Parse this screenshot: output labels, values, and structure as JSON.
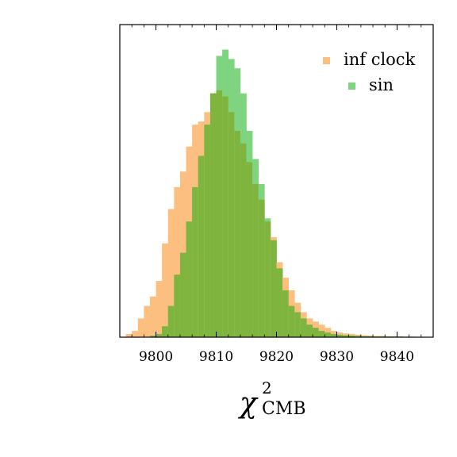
{
  "chart_data": {
    "type": "histogram",
    "title": "",
    "xlabel": {
      "symbol": "χ",
      "superscript": "2",
      "subscript": "CMB"
    },
    "ylabel": "",
    "xlim": [
      9794,
      9846
    ],
    "ylim": [
      0,
      1.0
    ],
    "xticks": [
      9800,
      9810,
      9820,
      9830,
      9840
    ],
    "xtick_labels": [
      "9800",
      "9810",
      "9820",
      "9830",
      "9840"
    ],
    "bin_width": 1,
    "legend_position": "top-right",
    "overlap_color": "#7fb53f",
    "series": [
      {
        "name": "inf clock",
        "color": "#fdbf80",
        "bin_starts": [
          9795,
          9796,
          9797,
          9798,
          9799,
          9800,
          9801,
          9802,
          9803,
          9804,
          9805,
          9806,
          9807,
          9808,
          9809,
          9810,
          9811,
          9812,
          9813,
          9814,
          9815,
          9816,
          9817,
          9818,
          9819,
          9820,
          9821,
          9822,
          9823,
          9824,
          9825,
          9826,
          9827,
          9828,
          9829,
          9830,
          9831,
          9832,
          9833,
          9834,
          9835,
          9836,
          9837,
          9838,
          9839,
          9840,
          9841,
          9842,
          9843
        ],
        "values": [
          0.01,
          0.02,
          0.06,
          0.1,
          0.13,
          0.18,
          0.3,
          0.41,
          0.48,
          0.53,
          0.61,
          0.68,
          0.69,
          0.72,
          0.78,
          0.79,
          0.77,
          0.72,
          0.66,
          0.62,
          0.56,
          0.49,
          0.44,
          0.37,
          0.32,
          0.24,
          0.19,
          0.15,
          0.11,
          0.08,
          0.06,
          0.05,
          0.04,
          0.03,
          0.02,
          0.015,
          0.012,
          0.01,
          0.008,
          0.006,
          0.005,
          0.004,
          0.004,
          0.003,
          0.003,
          0.002,
          0.002,
          0.002,
          0.001
        ]
      },
      {
        "name": "sin",
        "color": "#7fd47f",
        "bin_starts": [
          9799,
          9800,
          9801,
          9802,
          9803,
          9804,
          9805,
          9806,
          9807,
          9808,
          9809,
          9810,
          9811,
          9812,
          9813,
          9814,
          9815,
          9816,
          9817,
          9818,
          9819,
          9820,
          9821,
          9822,
          9823,
          9824,
          9825,
          9826,
          9827,
          9828,
          9829,
          9830,
          9831,
          9832,
          9833,
          9834,
          9835,
          9836,
          9837,
          9838,
          9839,
          9840,
          9841,
          9842,
          9843
        ],
        "values": [
          0.005,
          0.01,
          0.035,
          0.1,
          0.2,
          0.27,
          0.37,
          0.48,
          0.58,
          0.68,
          0.78,
          0.9,
          0.92,
          0.89,
          0.86,
          0.78,
          0.66,
          0.57,
          0.49,
          0.38,
          0.31,
          0.22,
          0.15,
          0.1,
          0.08,
          0.06,
          0.04,
          0.03,
          0.02,
          0.015,
          0.01,
          0.008,
          0.006,
          0.005,
          0.004,
          0.003,
          0.003,
          0.002,
          0.002,
          0.002,
          0.002,
          0.002,
          0.001,
          0.001,
          0.001
        ]
      }
    ]
  }
}
